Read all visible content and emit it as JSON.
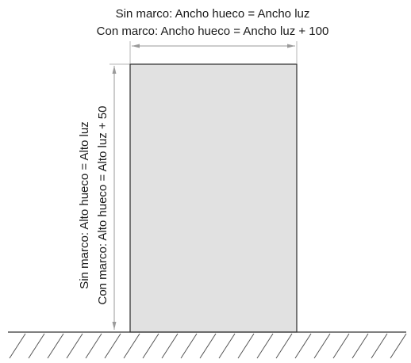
{
  "width_labels": {
    "without_frame": "Sin marco: Ancho hueco = Ancho luz",
    "with_frame": "Con marco: Ancho hueco = Ancho luz + 100"
  },
  "height_labels": {
    "without_frame": "Sin marco: Alto hueco = Alto luz",
    "with_frame": "Con marco: Alto hueco = Alto luz + 50"
  }
}
